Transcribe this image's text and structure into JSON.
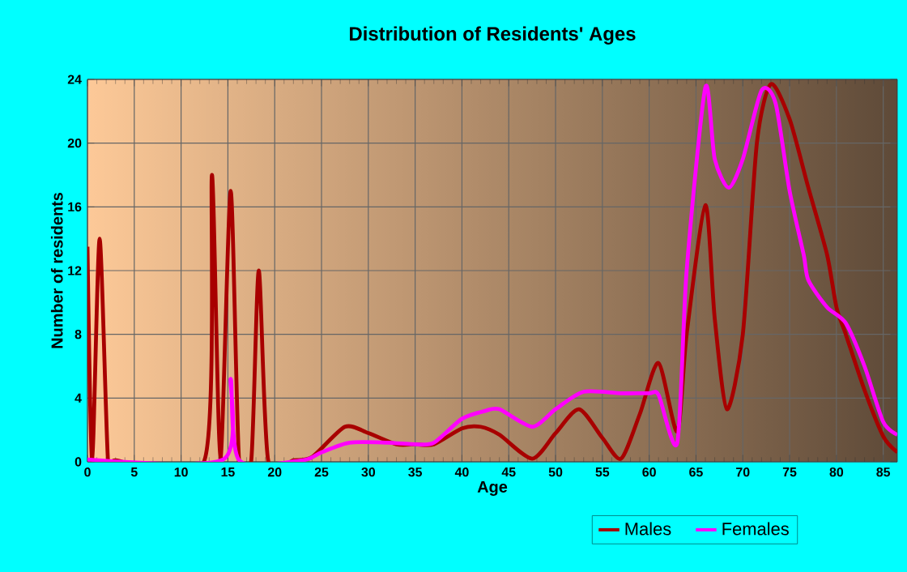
{
  "chart_data": {
    "type": "line",
    "title": "Distribution of Residents' Ages",
    "xlabel": "Age",
    "ylabel": "Number of residents",
    "xlim": [
      0,
      86.5
    ],
    "ylim": [
      0,
      24
    ],
    "xticks": [
      0,
      5,
      10,
      15,
      20,
      25,
      30,
      35,
      40,
      45,
      50,
      55,
      60,
      65,
      70,
      75,
      80,
      85
    ],
    "yticks": [
      0,
      4,
      8,
      12,
      16,
      20,
      24
    ],
    "grid": true,
    "legend": "bottom",
    "line_style": "solid",
    "marker": "none",
    "series": [
      {
        "name": "Males",
        "color": "#a80000",
        "x": [
          0,
          0.5,
          1.3,
          2.2,
          3,
          12.5,
          13.3,
          14.2,
          15.3,
          16.2,
          17.5,
          18.3,
          19.3,
          22,
          24,
          27.5,
          30,
          33,
          35,
          37,
          40,
          42,
          44,
          47.5,
          50,
          52.5,
          55,
          57,
          59,
          61,
          63,
          64,
          66,
          67,
          68.3,
          70,
          71.5,
          73,
          75,
          77,
          79,
          80,
          81,
          83,
          85,
          86.5
        ],
        "values": [
          13.5,
          0,
          14,
          0,
          0.1,
          0.1,
          18,
          0.2,
          17,
          0,
          0.1,
          12,
          0.1,
          0.1,
          0.3,
          2.2,
          1.8,
          1.1,
          1.1,
          1.1,
          2.1,
          2.2,
          1.7,
          0.2,
          1.8,
          3.3,
          1.5,
          0.2,
          3,
          6.2,
          1.9,
          8,
          16.1,
          9,
          3.3,
          8,
          20,
          23.7,
          21.5,
          17.2,
          13,
          9.7,
          8,
          4.5,
          1.6,
          0.6
        ]
      },
      {
        "name": "Females",
        "color": "#ff00ff",
        "x": [
          0,
          14.5,
          15.3,
          16.2,
          23,
          25,
          28,
          32,
          35,
          37,
          40,
          42.5,
          44,
          47.5,
          50,
          53,
          57,
          60,
          61,
          63,
          64,
          66,
          67,
          68.5,
          70,
          72,
          73.5,
          75,
          76.5,
          77,
          79,
          81,
          83,
          85,
          86.5
        ],
        "values": [
          0.15,
          0.15,
          5.2,
          0.1,
          0.1,
          0.6,
          1.2,
          1.2,
          1.1,
          1.2,
          2.7,
          3.2,
          3.3,
          2.2,
          3.3,
          4.4,
          4.3,
          4.3,
          4.2,
          1.2,
          12,
          23.5,
          19,
          17.2,
          19,
          23.3,
          22.5,
          17,
          13,
          11.4,
          9.7,
          8.7,
          6,
          2.5,
          1.7
        ]
      }
    ]
  }
}
